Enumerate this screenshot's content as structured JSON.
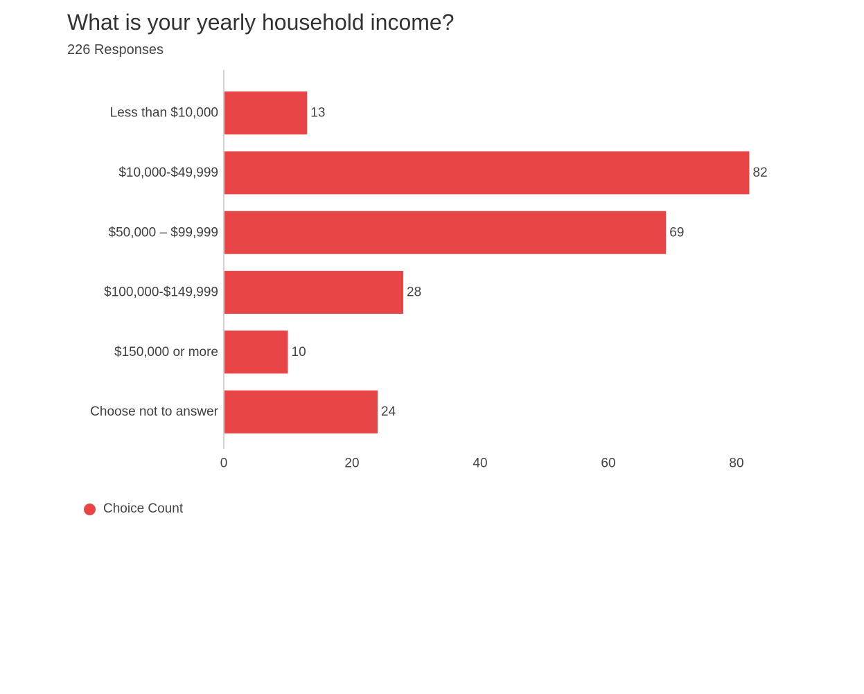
{
  "header": {
    "title": "What is your yearly household income?",
    "responses": "226 Responses"
  },
  "chart_data": {
    "type": "bar",
    "orientation": "horizontal",
    "title": "What is your yearly household income?",
    "subtitle": "226 Responses",
    "categories": [
      "Less than $10,000",
      "$10,000-$49,999",
      "$50,000 – $99,999",
      "$100,000-$149,999",
      "$150,000 or more",
      "Choose not to answer"
    ],
    "series": [
      {
        "name": "Choice Count",
        "values": [
          13,
          82,
          69,
          28,
          10,
          24
        ],
        "color": "#e84646"
      }
    ],
    "x_ticks": [
      "0",
      "20",
      "40",
      "60",
      "80"
    ],
    "xlim": [
      0,
      85
    ],
    "xlabel": "",
    "ylabel": "",
    "grid": false,
    "data_labels": true,
    "legend": {
      "position": "bottom-left",
      "entries": [
        "Choice Count"
      ]
    }
  },
  "legend": {
    "label": "Choice Count",
    "color": "#e84646"
  }
}
